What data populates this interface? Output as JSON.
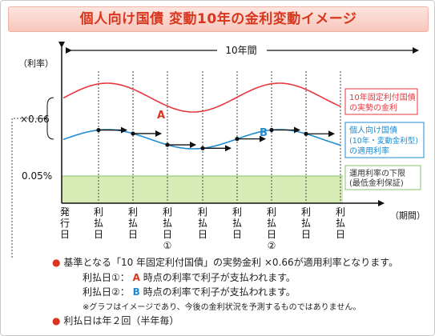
{
  "title": "個人向け国債 変動10年の金利変動イメージ",
  "diagram": {
    "span_label": "10年間",
    "yaxis_label": "（利率）",
    "xaxis_label": "（期間）",
    "multiplier_label": "×0.66",
    "floor_label": "0.05%",
    "issue_label": [
      "発",
      "行",
      "日"
    ],
    "payment_label": [
      "利",
      "払",
      "日"
    ],
    "payment_marks": [
      "①",
      "②"
    ],
    "marker_a": "A",
    "marker_b": "B",
    "legend": {
      "fixed_rate": [
        "10年固定利付国債",
        "の実勢の金利"
      ],
      "floating_rate": [
        "個人向け国債",
        "(10年・変動金利型)",
        "の適用利率"
      ],
      "floor": [
        "運用利率の下限",
        "(最低金利保証)"
      ]
    },
    "colors": {
      "fixed_curve": "#e8373d",
      "floating_curve": "#1f8bd0",
      "floor_band": "#d7ebb4",
      "floor_border": "#8cc06c",
      "title_text": "#d8361f"
    }
  },
  "notes": {
    "line1_prefix": "基準となる「10 年固定利付国債」の実勢金利",
    "line1_suffix": "×0.66が適用利率となります。",
    "line2_prefix": "利払日①：",
    "line2_mark": "A",
    "line2_suffix": "時点の利率で利子が支払われます。",
    "line3_prefix": "利払日②：",
    "line3_mark": "B",
    "line3_suffix": "時点の利率で利子が支払われます。",
    "disclaimer": "※グラフはイメージであり、今後の金利状況を予測するものではありません。",
    "line4": "利払日は年２回（半年毎）"
  }
}
